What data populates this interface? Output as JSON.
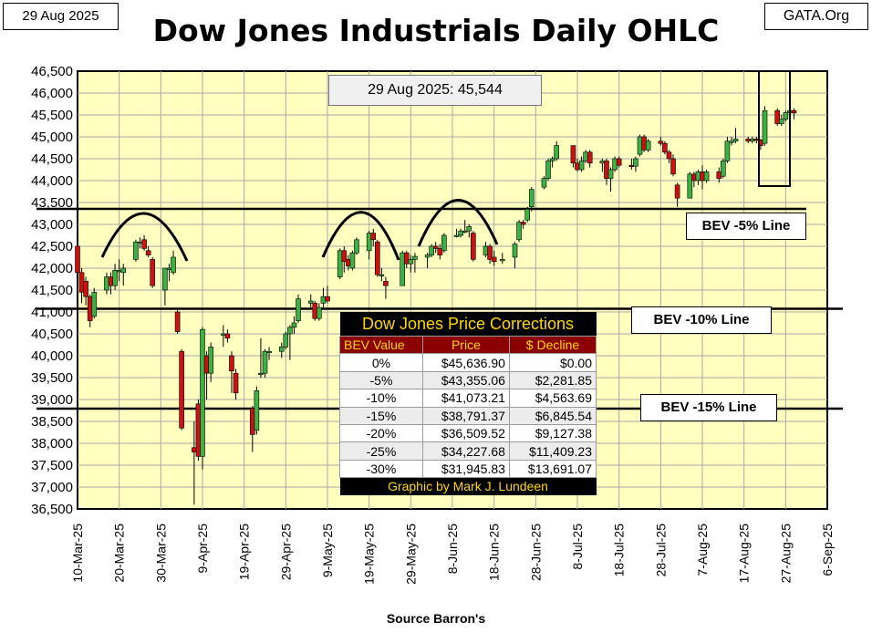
{
  "header": {
    "date_label": "29 Aug 2025",
    "title": "Dow Jones Industrials Daily OHLC",
    "brand": "GATA.Org",
    "last_close_label": "29 Aug 2025: 45,544",
    "source": "Source Barron's"
  },
  "bev_labels": {
    "bev5": "BEV -5% Line",
    "bev10": "BEV -10% Line",
    "bev15": "BEV -15% Line"
  },
  "corrections_table": {
    "title": "Dow Jones Price Corrections",
    "headers": [
      "BEV Value",
      "Price",
      "$ Decline"
    ],
    "rows": [
      [
        "0%",
        "$45,636.90",
        "$0.00"
      ],
      [
        "-5%",
        "$43,355.06",
        "$2,281.85"
      ],
      [
        "-10%",
        "$41,073.21",
        "$4,563.69"
      ],
      [
        "-15%",
        "$38,791.37",
        "$6,845.54"
      ],
      [
        "-20%",
        "$36,509.52",
        "$9,127.38"
      ],
      [
        "-25%",
        "$34,227.68",
        "$11,409.23"
      ],
      [
        "-30%",
        "$31,945.83",
        "$13,691.07"
      ]
    ],
    "footer": "Graphic by Mark J. Lundeen"
  },
  "colors": {
    "plot_background": "#ffffc0",
    "up_candle": "#3cb043",
    "down_candle": "#cc1111",
    "table_header_bg": "#8b0000",
    "table_header_text": "#ffd700"
  },
  "chart_data": {
    "type": "ohlc",
    "title": "Dow Jones Industrials Daily OHLC",
    "ylim": [
      36500,
      46500
    ],
    "y_ticks": [
      36500,
      37000,
      37500,
      38000,
      38500,
      39000,
      39500,
      40000,
      40500,
      41000,
      41500,
      42000,
      42500,
      43000,
      43500,
      44000,
      44500,
      45000,
      45500,
      46000,
      46500
    ],
    "y_tick_labels": [
      "36,500",
      "37,000",
      "37,500",
      "38,000",
      "38,500",
      "39,000",
      "39,500",
      "40,000",
      "40,500",
      "41,000",
      "41,500",
      "42,000",
      "42,500",
      "43,000",
      "43,500",
      "44,000",
      "44,500",
      "45,000",
      "45,500",
      "46,000",
      "46,500"
    ],
    "x_tick_labels": [
      "10-Mar-25",
      "20-Mar-25",
      "30-Mar-25",
      "9-Apr-25",
      "19-Apr-25",
      "29-Apr-25",
      "9-May-25",
      "19-May-25",
      "29-May-25",
      "8-Jun-25",
      "18-Jun-25",
      "28-Jun-25",
      "8-Jul-25",
      "18-Jul-25",
      "28-Jul-25",
      "7-Aug-25",
      "17-Aug-25",
      "27-Aug-25",
      "6-Sep-25"
    ],
    "xlim": [
      "2025-03-10",
      "2025-09-06"
    ],
    "grid": true,
    "bev_lines": [
      {
        "label": "BEV -5% Line",
        "value": 43355.06
      },
      {
        "label": "BEV -10% Line",
        "value": 41073.21
      },
      {
        "label": "BEV -15% Line",
        "value": 38791.37
      }
    ],
    "series": [
      {
        "date": "2025-03-10",
        "open": 42500,
        "high": 42550,
        "low": 41800,
        "close": 41900
      },
      {
        "date": "2025-03-11",
        "open": 41900,
        "high": 42000,
        "low": 41200,
        "close": 41450
      },
      {
        "date": "2025-03-12",
        "open": 41700,
        "high": 41800,
        "low": 41150,
        "close": 41350
      },
      {
        "date": "2025-03-13",
        "open": 41350,
        "high": 41400,
        "low": 40650,
        "close": 40800
      },
      {
        "date": "2025-03-14",
        "open": 40900,
        "high": 41550,
        "low": 40850,
        "close": 41450
      },
      {
        "date": "2025-03-17",
        "open": 41500,
        "high": 41900,
        "low": 41400,
        "close": 41800
      },
      {
        "date": "2025-03-18",
        "open": 41800,
        "high": 41900,
        "low": 41400,
        "close": 41600
      },
      {
        "date": "2025-03-19",
        "open": 41600,
        "high": 42100,
        "low": 41500,
        "close": 41950
      },
      {
        "date": "2025-03-20",
        "open": 41950,
        "high": 42200,
        "low": 41700,
        "close": 41950
      },
      {
        "date": "2025-03-21",
        "open": 41900,
        "high": 42100,
        "low": 41600,
        "close": 42000
      },
      {
        "date": "2025-03-24",
        "open": 42200,
        "high": 42650,
        "low": 42150,
        "close": 42600
      },
      {
        "date": "2025-03-25",
        "open": 42600,
        "high": 42700,
        "low": 42450,
        "close": 42600
      },
      {
        "date": "2025-03-26",
        "open": 42650,
        "high": 42750,
        "low": 42400,
        "close": 42450
      },
      {
        "date": "2025-03-27",
        "open": 42400,
        "high": 42500,
        "low": 42250,
        "close": 42300
      },
      {
        "date": "2025-03-28",
        "open": 42200,
        "high": 42250,
        "low": 41550,
        "close": 41600
      },
      {
        "date": "2025-03-31",
        "open": 41500,
        "high": 42000,
        "low": 41150,
        "close": 42000
      },
      {
        "date": "2025-04-01",
        "open": 42000,
        "high": 42100,
        "low": 41700,
        "close": 42000
      },
      {
        "date": "2025-04-02",
        "open": 41900,
        "high": 42400,
        "low": 41850,
        "close": 42250
      },
      {
        "date": "2025-04-03",
        "open": 41000,
        "high": 41050,
        "low": 40500,
        "close": 40550
      },
      {
        "date": "2025-04-04",
        "open": 40100,
        "high": 40150,
        "low": 38300,
        "close": 38350
      },
      {
        "date": "2025-04-07",
        "open": 37900,
        "high": 38500,
        "low": 36600,
        "close": 37800
      },
      {
        "date": "2025-04-08",
        "open": 38900,
        "high": 39000,
        "low": 37600,
        "close": 37700
      },
      {
        "date": "2025-04-09",
        "open": 37700,
        "high": 40650,
        "low": 37400,
        "close": 40600
      },
      {
        "date": "2025-04-10",
        "open": 40000,
        "high": 40100,
        "low": 39000,
        "close": 39600
      },
      {
        "date": "2025-04-11",
        "open": 39600,
        "high": 40300,
        "low": 39400,
        "close": 40200
      },
      {
        "date": "2025-04-14",
        "open": 40500,
        "high": 40700,
        "low": 40200,
        "close": 40500
      },
      {
        "date": "2025-04-15",
        "open": 40500,
        "high": 40600,
        "low": 40300,
        "close": 40400
      },
      {
        "date": "2025-04-16",
        "open": 40000,
        "high": 40100,
        "low": 39150,
        "close": 39650
      },
      {
        "date": "2025-04-17",
        "open": 39600,
        "high": 39700,
        "low": 39000,
        "close": 39150
      },
      {
        "date": "2025-04-21",
        "open": 38800,
        "high": 38850,
        "low": 37800,
        "close": 38200
      },
      {
        "date": "2025-04-22",
        "open": 38300,
        "high": 39300,
        "low": 38200,
        "close": 39200
      },
      {
        "date": "2025-04-23",
        "open": 39600,
        "high": 40400,
        "low": 39500,
        "close": 39600
      },
      {
        "date": "2025-04-24",
        "open": 39600,
        "high": 40150,
        "low": 39500,
        "close": 40100
      },
      {
        "date": "2025-04-25",
        "open": 40100,
        "high": 40200,
        "low": 39900,
        "close": 40100
      },
      {
        "date": "2025-04-28",
        "open": 40100,
        "high": 40300,
        "low": 39950,
        "close": 40200
      },
      {
        "date": "2025-04-29",
        "open": 40200,
        "high": 40550,
        "low": 40150,
        "close": 40500
      },
      {
        "date": "2025-04-30",
        "open": 40500,
        "high": 40700,
        "low": 39900,
        "close": 40650
      },
      {
        "date": "2025-05-01",
        "open": 40650,
        "high": 40900,
        "low": 40500,
        "close": 40750
      },
      {
        "date": "2025-05-02",
        "open": 40800,
        "high": 41400,
        "low": 40750,
        "close": 41300
      },
      {
        "date": "2025-05-05",
        "open": 41200,
        "high": 41400,
        "low": 41100,
        "close": 41250
      },
      {
        "date": "2025-05-06",
        "open": 41200,
        "high": 41250,
        "low": 40800,
        "close": 40850
      },
      {
        "date": "2025-05-07",
        "open": 40850,
        "high": 41200,
        "low": 40800,
        "close": 41100
      },
      {
        "date": "2025-05-08",
        "open": 41200,
        "high": 41550,
        "low": 41100,
        "close": 41350
      },
      {
        "date": "2025-05-09",
        "open": 41350,
        "high": 41600,
        "low": 41200,
        "close": 41250
      },
      {
        "date": "2025-05-12",
        "open": 41800,
        "high": 42450,
        "low": 41750,
        "close": 42400
      },
      {
        "date": "2025-05-13",
        "open": 42400,
        "high": 42500,
        "low": 41900,
        "close": 42150
      },
      {
        "date": "2025-05-14",
        "open": 42200,
        "high": 42300,
        "low": 41950,
        "close": 42050
      },
      {
        "date": "2025-05-15",
        "open": 42000,
        "high": 42400,
        "low": 41950,
        "close": 42350
      },
      {
        "date": "2025-05-16",
        "open": 42350,
        "high": 42700,
        "low": 42300,
        "close": 42650
      },
      {
        "date": "2025-05-19",
        "open": 42400,
        "high": 42850,
        "low": 42200,
        "close": 42800
      },
      {
        "date": "2025-05-20",
        "open": 42800,
        "high": 42900,
        "low": 42500,
        "close": 42650
      },
      {
        "date": "2025-05-21",
        "open": 42600,
        "high": 42650,
        "low": 41800,
        "close": 41850
      },
      {
        "date": "2025-05-22",
        "open": 41850,
        "high": 42000,
        "low": 41700,
        "close": 41850
      },
      {
        "date": "2025-05-23",
        "open": 41700,
        "high": 41800,
        "low": 41300,
        "close": 41600
      },
      {
        "date": "2025-05-27",
        "open": 41600,
        "high": 42400,
        "low": 41600,
        "close": 42350
      },
      {
        "date": "2025-05-28",
        "open": 42350,
        "high": 42400,
        "low": 42000,
        "close": 42100
      },
      {
        "date": "2025-05-29",
        "open": 42100,
        "high": 42300,
        "low": 41900,
        "close": 42200
      },
      {
        "date": "2025-05-30",
        "open": 42200,
        "high": 42350,
        "low": 41900,
        "close": 42270
      },
      {
        "date": "2025-06-02",
        "open": 42250,
        "high": 42350,
        "low": 42000,
        "close": 42300
      },
      {
        "date": "2025-06-03",
        "open": 42300,
        "high": 42550,
        "low": 42250,
        "close": 42500
      },
      {
        "date": "2025-06-04",
        "open": 42500,
        "high": 42600,
        "low": 42350,
        "close": 42450
      },
      {
        "date": "2025-06-05",
        "open": 42450,
        "high": 42550,
        "low": 42200,
        "close": 42300
      },
      {
        "date": "2025-06-06",
        "open": 42400,
        "high": 42800,
        "low": 42350,
        "close": 42750
      },
      {
        "date": "2025-06-09",
        "open": 42750,
        "high": 42900,
        "low": 42700,
        "close": 42750
      },
      {
        "date": "2025-06-10",
        "open": 42750,
        "high": 42900,
        "low": 42700,
        "close": 42850
      },
      {
        "date": "2025-06-11",
        "open": 42850,
        "high": 43100,
        "low": 42800,
        "close": 42850
      },
      {
        "date": "2025-06-12",
        "open": 42850,
        "high": 43000,
        "low": 42700,
        "close": 42950
      },
      {
        "date": "2025-06-13",
        "open": 42800,
        "high": 42850,
        "low": 42150,
        "close": 42200
      },
      {
        "date": "2025-06-16",
        "open": 42300,
        "high": 42600,
        "low": 42250,
        "close": 42500
      },
      {
        "date": "2025-06-17",
        "open": 42500,
        "high": 42550,
        "low": 42100,
        "close": 42200
      },
      {
        "date": "2025-06-18",
        "open": 42250,
        "high": 42400,
        "low": 42050,
        "close": 42150
      },
      {
        "date": "2025-06-20",
        "open": 42200,
        "high": 42350,
        "low": 42100,
        "close": 42200
      },
      {
        "date": "2025-06-23",
        "open": 42250,
        "high": 42600,
        "low": 42000,
        "close": 42550
      },
      {
        "date": "2025-06-24",
        "open": 42650,
        "high": 43100,
        "low": 42600,
        "close": 43050
      },
      {
        "date": "2025-06-25",
        "open": 43050,
        "high": 43100,
        "low": 42900,
        "close": 43000
      },
      {
        "date": "2025-06-26",
        "open": 43100,
        "high": 43400,
        "low": 43050,
        "close": 43350
      },
      {
        "date": "2025-06-27",
        "open": 43400,
        "high": 43850,
        "low": 43300,
        "close": 43800
      },
      {
        "date": "2025-06-30",
        "open": 43850,
        "high": 44100,
        "low": 43800,
        "close": 44050
      },
      {
        "date": "2025-07-01",
        "open": 44050,
        "high": 44500,
        "low": 44000,
        "close": 44450
      },
      {
        "date": "2025-07-02",
        "open": 44450,
        "high": 44550,
        "low": 44300,
        "close": 44500
      },
      {
        "date": "2025-07-03",
        "open": 44500,
        "high": 44900,
        "low": 44450,
        "close": 44800
      },
      {
        "date": "2025-07-07",
        "open": 44800,
        "high": 44800,
        "low": 44300,
        "close": 44400
      },
      {
        "date": "2025-07-08",
        "open": 44400,
        "high": 44500,
        "low": 44200,
        "close": 44250
      },
      {
        "date": "2025-07-09",
        "open": 44250,
        "high": 44550,
        "low": 44200,
        "close": 44450
      },
      {
        "date": "2025-07-10",
        "open": 44450,
        "high": 44700,
        "low": 44400,
        "close": 44650
      },
      {
        "date": "2025-07-11",
        "open": 44650,
        "high": 44700,
        "low": 44300,
        "close": 44400
      },
      {
        "date": "2025-07-14",
        "open": 44400,
        "high": 44500,
        "low": 44200,
        "close": 44450
      },
      {
        "date": "2025-07-15",
        "open": 44450,
        "high": 44500,
        "low": 43900,
        "close": 44050
      },
      {
        "date": "2025-07-16",
        "open": 44050,
        "high": 44300,
        "low": 43750,
        "close": 44250
      },
      {
        "date": "2025-07-17",
        "open": 44250,
        "high": 44550,
        "low": 44200,
        "close": 44500
      },
      {
        "date": "2025-07-18",
        "open": 44500,
        "high": 44550,
        "low": 44300,
        "close": 44350
      },
      {
        "date": "2025-07-21",
        "open": 44350,
        "high": 44500,
        "low": 44250,
        "close": 44330
      },
      {
        "date": "2025-07-22",
        "open": 44330,
        "high": 44550,
        "low": 44200,
        "close": 44500
      },
      {
        "date": "2025-07-23",
        "open": 44600,
        "high": 45050,
        "low": 44550,
        "close": 45000
      },
      {
        "date": "2025-07-24",
        "open": 45000,
        "high": 45050,
        "low": 44650,
        "close": 44700
      },
      {
        "date": "2025-07-25",
        "open": 44700,
        "high": 44950,
        "low": 44650,
        "close": 44900
      },
      {
        "date": "2025-07-28",
        "open": 44900,
        "high": 45000,
        "low": 44800,
        "close": 44850
      },
      {
        "date": "2025-07-29",
        "open": 44850,
        "high": 44900,
        "low": 44600,
        "close": 44650
      },
      {
        "date": "2025-07-30",
        "open": 44650,
        "high": 44700,
        "low": 44400,
        "close": 44500
      },
      {
        "date": "2025-07-31",
        "open": 44500,
        "high": 44600,
        "low": 44100,
        "close": 44150
      },
      {
        "date": "2025-08-01",
        "open": 43900,
        "high": 43950,
        "low": 43400,
        "close": 43600
      },
      {
        "date": "2025-08-04",
        "open": 43600,
        "high": 44200,
        "low": 43600,
        "close": 44150
      },
      {
        "date": "2025-08-05",
        "open": 44150,
        "high": 44200,
        "low": 43850,
        "close": 44000
      },
      {
        "date": "2025-08-06",
        "open": 44000,
        "high": 44250,
        "low": 43900,
        "close": 44200
      },
      {
        "date": "2025-08-07",
        "open": 44200,
        "high": 44350,
        "low": 43800,
        "close": 44000
      },
      {
        "date": "2025-08-08",
        "open": 44000,
        "high": 44250,
        "low": 43950,
        "close": 44200
      },
      {
        "date": "2025-08-11",
        "open": 44200,
        "high": 44300,
        "low": 43950,
        "close": 44050
      },
      {
        "date": "2025-08-12",
        "open": 44100,
        "high": 44500,
        "low": 44050,
        "close": 44450
      },
      {
        "date": "2025-08-13",
        "open": 44450,
        "high": 45000,
        "low": 44400,
        "close": 44900
      },
      {
        "date": "2025-08-14",
        "open": 44900,
        "high": 45000,
        "low": 44800,
        "close": 44900
      },
      {
        "date": "2025-08-15",
        "open": 44900,
        "high": 45200,
        "low": 44850,
        "close": 44950
      },
      {
        "date": "2025-08-18",
        "open": 44950,
        "high": 45000,
        "low": 44850,
        "close": 44900
      },
      {
        "date": "2025-08-19",
        "open": 44900,
        "high": 45000,
        "low": 44850,
        "close": 44950
      },
      {
        "date": "2025-08-20",
        "open": 44950,
        "high": 45000,
        "low": 44850,
        "close": 44930
      },
      {
        "date": "2025-08-21",
        "open": 44930,
        "high": 44950,
        "low": 44700,
        "close": 44800
      },
      {
        "date": "2025-08-22",
        "open": 44850,
        "high": 45700,
        "low": 44800,
        "close": 45600
      },
      {
        "date": "2025-08-25",
        "open": 45600,
        "high": 45650,
        "low": 45250,
        "close": 45300
      },
      {
        "date": "2025-08-26",
        "open": 45300,
        "high": 45500,
        "low": 45250,
        "close": 45400
      },
      {
        "date": "2025-08-27",
        "open": 45400,
        "high": 45600,
        "low": 45350,
        "close": 45550
      },
      {
        "date": "2025-08-28",
        "open": 45550,
        "high": 45700,
        "low": 45500,
        "close": 45600
      },
      {
        "date": "2025-08-29",
        "open": 45600,
        "high": 45650,
        "low": 45400,
        "close": 45544
      }
    ]
  }
}
